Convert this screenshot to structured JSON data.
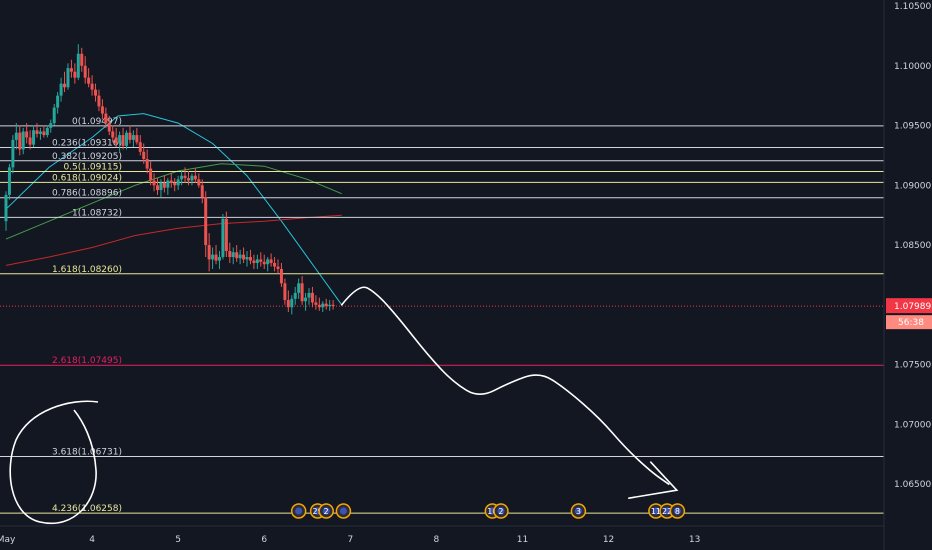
{
  "chart_data": {
    "type": "candlestick",
    "title": "",
    "colors": {
      "background": "#131722",
      "up": "#26a69a",
      "down": "#ef5350",
      "fib_default": "#d1d4dc",
      "fib_golden": "#e8e89a",
      "fib_ext": "#e91e63",
      "ma_fast": "#26c6da",
      "ma_mid": "#43a047",
      "ma_slow": "#c62828",
      "last_price": "#f23645",
      "axis_text": "#d1d4dc"
    },
    "y_axis": {
      "range": [
        1.0615,
        1.1055
      ],
      "ticks": [
        "1.10500",
        "1.10000",
        "1.09500",
        "1.09000",
        "1.08500",
        "1.08000",
        "1.07500",
        "1.07000",
        "1.06500"
      ],
      "tick_values": [
        1.105,
        1.1,
        1.095,
        1.09,
        1.085,
        1.08,
        1.075,
        1.07,
        1.065
      ]
    },
    "x_axis": {
      "range_days": [
        3.0,
        13.2
      ],
      "labels": [
        {
          "text": "May",
          "day": 3.0
        },
        {
          "text": "4",
          "day": 4.0
        },
        {
          "text": "5",
          "day": 5.0
        },
        {
          "text": "6",
          "day": 6.0
        },
        {
          "text": "7",
          "day": 7.0
        },
        {
          "text": "8",
          "day": 8.0
        },
        {
          "text": "11",
          "day": 9.0
        },
        {
          "text": "12",
          "day": 10.0
        },
        {
          "text": "13",
          "day": 11.0
        }
      ]
    },
    "fib_levels": [
      {
        "ratio": "0",
        "price": 1.09497,
        "label": "0(1.09497)",
        "kind": "default"
      },
      {
        "ratio": "0.236",
        "price": 1.09316,
        "label": "0.236(1.09316)",
        "kind": "default"
      },
      {
        "ratio": "0.382",
        "price": 1.09205,
        "label": "0.382(1.09205)",
        "kind": "default"
      },
      {
        "ratio": "0.5",
        "price": 1.09115,
        "label": "0.5(1.09115)",
        "kind": "golden"
      },
      {
        "ratio": "0.618",
        "price": 1.09024,
        "label": "0.618(1.09024)",
        "kind": "golden"
      },
      {
        "ratio": "0.786",
        "price": 1.08896,
        "label": "0.786(1.08896)",
        "kind": "default"
      },
      {
        "ratio": "1",
        "price": 1.08732,
        "label": "1(1.08732)",
        "kind": "default"
      },
      {
        "ratio": "1.618",
        "price": 1.0826,
        "label": "1.618(1.08260)",
        "kind": "golden"
      },
      {
        "ratio": "2.618",
        "price": 1.07495,
        "label": "2.618(1.07495)",
        "kind": "ext"
      },
      {
        "ratio": "3.618",
        "price": 1.06731,
        "label": "3.618(1.06731)",
        "kind": "default"
      },
      {
        "ratio": "4.236",
        "price": 1.06258,
        "label": "4.236(1.06258)",
        "kind": "golden"
      }
    ],
    "last_price": {
      "value": "1.07989",
      "countdown": "56:38",
      "price": 1.07989
    },
    "candles": [
      [
        3.0,
        1.087,
        1.0895,
        1.0862,
        1.0892
      ],
      [
        3.04,
        1.0892,
        1.0918,
        1.0888,
        1.0915
      ],
      [
        3.08,
        1.0915,
        1.0942,
        1.091,
        1.0938
      ],
      [
        3.12,
        1.0938,
        1.0952,
        1.093,
        1.0944
      ],
      [
        3.16,
        1.0944,
        1.095,
        1.0925,
        1.093
      ],
      [
        3.2,
        1.093,
        1.0948,
        1.0926,
        1.0945
      ],
      [
        3.24,
        1.0945,
        1.0952,
        1.0935,
        1.094
      ],
      [
        3.28,
        1.094,
        1.0946,
        1.093,
        1.0934
      ],
      [
        3.32,
        1.0934,
        1.095,
        1.0932,
        1.0946
      ],
      [
        3.36,
        1.0946,
        1.0952,
        1.094,
        1.0943
      ],
      [
        3.4,
        1.0943,
        1.0948,
        1.0938,
        1.0945
      ],
      [
        3.44,
        1.0945,
        1.095,
        1.094,
        1.0942
      ],
      [
        3.48,
        1.0942,
        1.095,
        1.094,
        1.0948
      ],
      [
        3.52,
        1.0948,
        1.0955,
        1.0944,
        1.0952
      ],
      [
        3.56,
        1.0952,
        1.0968,
        1.095,
        1.0965
      ],
      [
        3.6,
        1.0965,
        1.0978,
        1.096,
        1.0975
      ],
      [
        3.64,
        1.0975,
        1.099,
        1.097,
        1.0985
      ],
      [
        3.68,
        1.0985,
        1.0995,
        1.0978,
        1.0982
      ],
      [
        3.72,
        1.0982,
        1.1002,
        1.098,
        1.0998
      ],
      [
        3.76,
        1.0998,
        1.1005,
        1.099,
        1.0995
      ],
      [
        3.8,
        1.0995,
        1.1002,
        1.0985,
        1.099
      ],
      [
        3.84,
        1.099,
        1.1018,
        1.0988,
        1.101
      ],
      [
        3.88,
        1.101,
        1.1015,
        1.0995,
        1.1
      ],
      [
        3.92,
        1.1,
        1.1008,
        1.0985,
        1.099
      ],
      [
        3.96,
        1.099,
        1.0998,
        1.0982,
        1.0985
      ],
      [
        4.0,
        1.0985,
        1.0992,
        1.0975,
        1.098
      ],
      [
        4.04,
        1.098,
        1.0985,
        1.097,
        1.0975
      ],
      [
        4.08,
        1.0975,
        1.098,
        1.0962,
        1.0966
      ],
      [
        4.12,
        1.0966,
        1.0972,
        1.0955,
        1.096
      ],
      [
        4.16,
        1.096,
        1.0965,
        1.0948,
        1.0952
      ],
      [
        4.2,
        1.0952,
        1.0958,
        1.0942,
        1.0945
      ],
      [
        4.24,
        1.0945,
        1.095,
        1.0936,
        1.094
      ],
      [
        4.28,
        1.094,
        1.0948,
        1.0932,
        1.0935
      ],
      [
        4.32,
        1.0935,
        1.0945,
        1.0928,
        1.0942
      ],
      [
        4.36,
        1.0942,
        1.0948,
        1.093,
        1.0933
      ],
      [
        4.4,
        1.0933,
        1.0946,
        1.093,
        1.0944
      ],
      [
        4.44,
        1.0944,
        1.095,
        1.0935,
        1.0938
      ],
      [
        4.48,
        1.0938,
        1.0946,
        1.0932,
        1.0942
      ],
      [
        4.52,
        1.0942,
        1.0948,
        1.0934,
        1.0936
      ],
      [
        4.56,
        1.0936,
        1.0942,
        1.0925,
        1.0928
      ],
      [
        4.6,
        1.0928,
        1.0935,
        1.0918,
        1.0922
      ],
      [
        4.64,
        1.0922,
        1.093,
        1.091,
        1.0914
      ],
      [
        4.68,
        1.0914,
        1.092,
        1.09,
        1.0904
      ],
      [
        4.72,
        1.0904,
        1.091,
        1.0895,
        1.09
      ],
      [
        4.76,
        1.09,
        1.0906,
        1.0892,
        1.0896
      ],
      [
        4.8,
        1.0896,
        1.0905,
        1.089,
        1.0902
      ],
      [
        4.84,
        1.0902,
        1.0908,
        1.0894,
        1.0898
      ],
      [
        4.88,
        1.0898,
        1.0906,
        1.0892,
        1.0904
      ],
      [
        4.92,
        1.0904,
        1.091,
        1.0898,
        1.0902
      ],
      [
        4.96,
        1.0902,
        1.0906,
        1.0895,
        1.09
      ],
      [
        5.0,
        1.09,
        1.0908,
        1.0896,
        1.0905
      ],
      [
        5.04,
        1.0905,
        1.0912,
        1.09,
        1.0908
      ],
      [
        5.08,
        1.0908,
        1.0915,
        1.0902,
        1.0906
      ],
      [
        5.12,
        1.0906,
        1.0912,
        1.09,
        1.0904
      ],
      [
        5.16,
        1.0904,
        1.091,
        1.09,
        1.0908
      ],
      [
        5.2,
        1.0908,
        1.0914,
        1.0902,
        1.0905
      ],
      [
        5.24,
        1.0905,
        1.091,
        1.0898,
        1.09
      ],
      [
        5.28,
        1.09,
        1.0905,
        1.0885,
        1.089
      ],
      [
        5.32,
        1.089,
        1.0895,
        1.084,
        1.085
      ],
      [
        5.36,
        1.085,
        1.086,
        1.0828,
        1.0838
      ],
      [
        5.4,
        1.0838,
        1.0848,
        1.083,
        1.0842
      ],
      [
        5.44,
        1.0842,
        1.085,
        1.0834,
        1.0837
      ],
      [
        5.48,
        1.0837,
        1.0845,
        1.083,
        1.084
      ],
      [
        5.52,
        1.084,
        1.0876,
        1.0838,
        1.0872
      ],
      [
        5.56,
        1.0872,
        1.0878,
        1.084,
        1.0845
      ],
      [
        5.6,
        1.0845,
        1.0852,
        1.0835,
        1.084
      ],
      [
        5.64,
        1.084,
        1.0848,
        1.0834,
        1.0844
      ],
      [
        5.68,
        1.0844,
        1.085,
        1.0836,
        1.0839
      ],
      [
        5.72,
        1.0839,
        1.0846,
        1.0834,
        1.0842
      ],
      [
        5.76,
        1.0842,
        1.0848,
        1.0835,
        1.0838
      ],
      [
        5.8,
        1.0838,
        1.0845,
        1.0832,
        1.084
      ],
      [
        5.84,
        1.084,
        1.0846,
        1.0834,
        1.0837
      ],
      [
        5.88,
        1.0837,
        1.0842,
        1.083,
        1.0835
      ],
      [
        5.92,
        1.0835,
        1.0842,
        1.083,
        1.0838
      ],
      [
        5.96,
        1.0838,
        1.0844,
        1.0832,
        1.0836
      ],
      [
        6.0,
        1.0836,
        1.0842,
        1.083,
        1.0834
      ],
      [
        6.04,
        1.0834,
        1.084,
        1.0828,
        1.0838
      ],
      [
        6.08,
        1.0838,
        1.0843,
        1.0832,
        1.0835
      ],
      [
        6.12,
        1.0835,
        1.084,
        1.0828,
        1.0832
      ],
      [
        6.16,
        1.0832,
        1.0838,
        1.0826,
        1.083
      ],
      [
        6.2,
        1.083,
        1.0835,
        1.0815,
        1.0818
      ],
      [
        6.24,
        1.0818,
        1.0822,
        1.08,
        1.0804
      ],
      [
        6.28,
        1.0804,
        1.0812,
        1.0794,
        1.0798
      ],
      [
        6.32,
        1.0798,
        1.0808,
        1.0792,
        1.0805
      ],
      [
        6.36,
        1.0805,
        1.0815,
        1.08,
        1.081
      ],
      [
        6.4,
        1.081,
        1.0822,
        1.0805,
        1.0818
      ],
      [
        6.44,
        1.0818,
        1.0824,
        1.08,
        1.0803
      ],
      [
        6.48,
        1.0803,
        1.081,
        1.0795,
        1.0806
      ],
      [
        6.52,
        1.0806,
        1.0814,
        1.08,
        1.081
      ],
      [
        6.56,
        1.081,
        1.0815,
        1.0798,
        1.0802
      ],
      [
        6.6,
        1.0802,
        1.0808,
        1.0796,
        1.08
      ],
      [
        6.64,
        1.08,
        1.0806,
        1.0795,
        1.0798
      ],
      [
        6.68,
        1.0798,
        1.0803,
        1.0794,
        1.0801
      ],
      [
        6.72,
        1.0801,
        1.0805,
        1.0796,
        1.0799
      ],
      [
        6.76,
        1.0799,
        1.0804,
        1.0795,
        1.08
      ],
      [
        6.8,
        1.08,
        1.0804,
        1.0796,
        1.0799
      ]
    ],
    "moving_averages": [
      {
        "name": "",
        "color": "ma_fast",
        "points": [
          [
            3.0,
            1.088
          ],
          [
            3.5,
            1.0915
          ],
          [
            4.0,
            1.094
          ],
          [
            4.3,
            1.0958
          ],
          [
            4.6,
            1.096
          ],
          [
            5.0,
            1.0952
          ],
          [
            5.4,
            1.0935
          ],
          [
            5.8,
            1.0908
          ],
          [
            6.2,
            1.087
          ],
          [
            6.6,
            1.083
          ],
          [
            6.9,
            1.08
          ]
        ]
      },
      {
        "name": "",
        "color": "ma_mid",
        "points": [
          [
            3.0,
            1.0855
          ],
          [
            3.5,
            1.087
          ],
          [
            4.0,
            1.0885
          ],
          [
            4.5,
            1.09
          ],
          [
            5.0,
            1.0912
          ],
          [
            5.5,
            1.0918
          ],
          [
            6.0,
            1.0916
          ],
          [
            6.5,
            1.0905
          ],
          [
            6.9,
            1.0893
          ]
        ]
      },
      {
        "name": "",
        "color": "ma_slow",
        "points": [
          [
            3.0,
            1.0833
          ],
          [
            3.5,
            1.084
          ],
          [
            4.0,
            1.0848
          ],
          [
            4.5,
            1.0858
          ],
          [
            5.0,
            1.0864
          ],
          [
            5.5,
            1.0868
          ],
          [
            6.0,
            1.087
          ],
          [
            6.5,
            1.0873
          ],
          [
            6.9,
            1.0875
          ]
        ]
      }
    ],
    "hand_drawn_projection": [
      [
        6.9,
        1.08
      ],
      [
        7.1,
        1.0818
      ],
      [
        7.3,
        1.081
      ],
      [
        7.55,
        1.079
      ],
      [
        7.9,
        1.0758
      ],
      [
        8.2,
        1.0735
      ],
      [
        8.5,
        1.0722
      ],
      [
        8.85,
        1.0735
      ],
      [
        9.2,
        1.0744
      ],
      [
        9.5,
        1.073
      ],
      [
        9.9,
        1.0705
      ],
      [
        10.2,
        1.068
      ],
      [
        10.5,
        1.066
      ],
      [
        10.7,
        1.065
      ]
    ],
    "events": [
      {
        "day": 6.4,
        "label": ""
      },
      {
        "day": 6.62,
        "label": "29"
      },
      {
        "day": 6.72,
        "label": "2"
      },
      {
        "day": 6.92,
        "label": ""
      },
      {
        "day": 8.65,
        "label": "10"
      },
      {
        "day": 8.75,
        "label": "2"
      },
      {
        "day": 9.65,
        "label": "3"
      },
      {
        "day": 10.55,
        "label": "11"
      },
      {
        "day": 10.68,
        "label": "22"
      },
      {
        "day": 10.8,
        "label": "8"
      }
    ]
  }
}
